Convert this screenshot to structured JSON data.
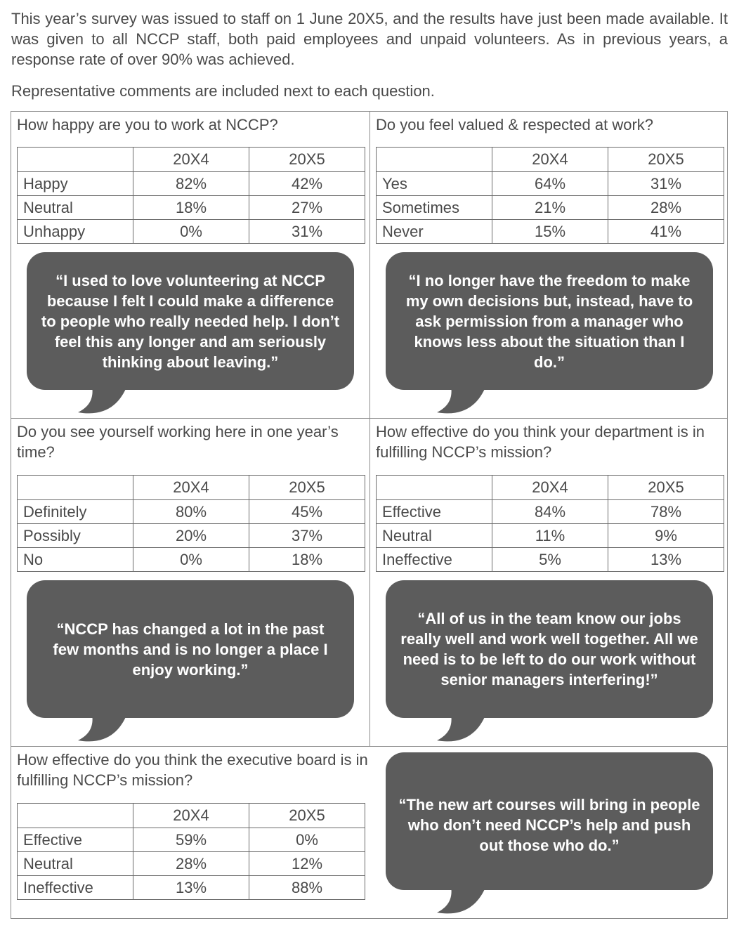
{
  "intro": "This year’s survey was issued to staff on 1 June 20X5, and the results have just been made available. It was given to all NCCP staff, both paid employees and unpaid volunteers. As in previous years, a response rate of over 90% was achieved.",
  "lead": "Representative comments are included next to each question.",
  "year_headers": [
    "20X4",
    "20X5"
  ],
  "sections": [
    {
      "question": "How happy are you to work at NCCP?",
      "rows": [
        {
          "label": "Happy",
          "y20x4": "82%",
          "y20x5": "42%"
        },
        {
          "label": "Neutral",
          "y20x4": "18%",
          "y20x5": "27%"
        },
        {
          "label": "Unhappy",
          "y20x4": "0%",
          "y20x5": "31%"
        }
      ],
      "comment": "“I used to love volunteering at NCCP because I felt I could make a difference to people who really needed help. I don’t feel this any longer and am seriously thinking about leaving.”"
    },
    {
      "question": "Do you feel valued & respected at work?",
      "rows": [
        {
          "label": "Yes",
          "y20x4": "64%",
          "y20x5": "31%"
        },
        {
          "label": "Sometimes",
          "y20x4": "21%",
          "y20x5": "28%"
        },
        {
          "label": "Never",
          "y20x4": "15%",
          "y20x5": "41%"
        }
      ],
      "comment": "“I no longer have the freedom to make my own decisions but, instead, have to ask permission from a manager who knows less about the situation than I do.”"
    },
    {
      "question": "Do you see yourself working here in one year’s time?",
      "rows": [
        {
          "label": "Definitely",
          "y20x4": "80%",
          "y20x5": "45%"
        },
        {
          "label": "Possibly",
          "y20x4": "20%",
          "y20x5": "37%"
        },
        {
          "label": "No",
          "y20x4": "0%",
          "y20x5": "18%"
        }
      ],
      "comment": "“NCCP has changed a lot in the past few months and is no longer a place I enjoy working.”"
    },
    {
      "question": "How effective do you think your department is in fulfilling NCCP’s mission?",
      "rows": [
        {
          "label": "Effective",
          "y20x4": "84%",
          "y20x5": "78%"
        },
        {
          "label": "Neutral",
          "y20x4": "11%",
          "y20x5": "9%"
        },
        {
          "label": "Ineffective",
          "y20x4": "5%",
          "y20x5": "13%"
        }
      ],
      "comment": "“All of us in the team know our jobs really well and work well together. All we need is to be left to do our work without senior managers interfering!”"
    },
    {
      "question": "How effective do you think the executive board is in fulfilling NCCP’s mission?",
      "rows": [
        {
          "label": "Effective",
          "y20x4": "59%",
          "y20x5": "0%"
        },
        {
          "label": "Neutral",
          "y20x4": "28%",
          "y20x5": "12%"
        },
        {
          "label": "Ineffective",
          "y20x4": "13%",
          "y20x5": "88%"
        }
      ],
      "comment": "“The new art courses will bring in people who don’t need NCCP’s help and push out those who do.”"
    }
  ]
}
